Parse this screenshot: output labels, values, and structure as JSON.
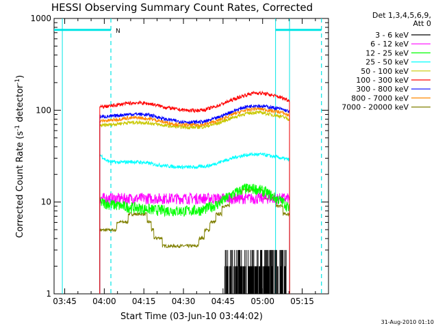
{
  "chart_data": {
    "type": "line",
    "title": "HESSI Observing Summary Count Rates, Corrected",
    "xlabel": "Start Time (03-Jun-10 03:44:02)",
    "ylabel_main": "Corrected Count Rate (s",
    "ylabel_sup1": "-1",
    "ylabel_mid": " detector",
    "ylabel_sup2": "-1",
    "ylabel_end": ")",
    "yscale": "log",
    "xlim": [
      -4.033,
      99.967
    ],
    "ylim": [
      1,
      1000
    ],
    "x_ticks": [
      {
        "label": "03:45",
        "x": 0
      },
      {
        "label": "04:00",
        "x": 15
      },
      {
        "label": "04:15",
        "x": 30
      },
      {
        "label": "04:30",
        "x": 45
      },
      {
        "label": "04:45",
        "x": 60
      },
      {
        "label": "05:00",
        "x": 75
      },
      {
        "label": "05:15",
        "x": 90
      }
    ],
    "y_ticks": [
      {
        "label": "1",
        "value": 1
      },
      {
        "label": "10",
        "value": 10
      },
      {
        "label": "100",
        "value": 100
      },
      {
        "label": "1000",
        "value": 1000
      }
    ],
    "legend_header": [
      "Det 1,3,4,5,6,9,",
      "Att 0"
    ],
    "legend_placement": "right",
    "timestamp": "31-Aug-2010 01:10",
    "night_label": "N",
    "night_bars": [
      {
        "x_start": -4.033,
        "x_end": 17.5
      },
      {
        "x_start": 79.9,
        "x_end": 97.3
      }
    ],
    "night_bar_level": 750,
    "night_bounds_dashed": [
      17.5,
      97.3
    ],
    "night_bounds_solid": [
      -0.9,
      79.9,
      85.2
    ],
    "data_x_range": [
      13.3,
      85.2
    ],
    "series": [
      {
        "name": "3 - 6 keV",
        "color": "#000000",
        "segments": [
          {
            "x_start": 60.5,
            "x_end": 84.0,
            "low": 1.0,
            "high": 3.0
          }
        ]
      },
      {
        "name": "6 - 12 keV",
        "color": "#ff00ff",
        "points": [
          [
            13.3,
            11
          ],
          [
            20,
            11
          ],
          [
            30,
            11
          ],
          [
            40,
            11
          ],
          [
            50,
            11
          ],
          [
            60,
            11
          ],
          [
            70,
            11
          ],
          [
            75,
            11
          ],
          [
            80,
            11
          ],
          [
            85,
            11
          ]
        ]
      },
      {
        "name": "12 - 25 keV",
        "color": "#00ff00",
        "points": [
          [
            13.3,
            10
          ],
          [
            17,
            9.5
          ],
          [
            22,
            9
          ],
          [
            28,
            8.6
          ],
          [
            35,
            8.2
          ],
          [
            45,
            8
          ],
          [
            52,
            8.2
          ],
          [
            58,
            9.5
          ],
          [
            63,
            12
          ],
          [
            68,
            14
          ],
          [
            72,
            14
          ],
          [
            76,
            13
          ],
          [
            80,
            11
          ],
          [
            83,
            10
          ],
          [
            85,
            8.5
          ]
        ]
      },
      {
        "name": "25 - 50 keV",
        "color": "#00ffff",
        "points": [
          [
            13.3,
            33
          ],
          [
            16,
            28
          ],
          [
            20,
            27
          ],
          [
            25,
            27.5
          ],
          [
            30,
            27
          ],
          [
            35,
            25.5
          ],
          [
            40,
            24.5
          ],
          [
            45,
            24
          ],
          [
            50,
            24
          ],
          [
            55,
            25
          ],
          [
            60,
            28
          ],
          [
            65,
            31
          ],
          [
            70,
            33
          ],
          [
            75,
            33
          ],
          [
            80,
            31
          ],
          [
            85,
            29
          ]
        ]
      },
      {
        "name": "50 - 100 keV",
        "color": "#c8c800",
        "points": [
          [
            13.3,
            68
          ],
          [
            18,
            70
          ],
          [
            23,
            73
          ],
          [
            28,
            74
          ],
          [
            33,
            72
          ],
          [
            38,
            68
          ],
          [
            43,
            66
          ],
          [
            48,
            65
          ],
          [
            53,
            66
          ],
          [
            58,
            72
          ],
          [
            63,
            82
          ],
          [
            68,
            91
          ],
          [
            72,
            95
          ],
          [
            75,
            94
          ],
          [
            78,
            90
          ],
          [
            82,
            86
          ],
          [
            85,
            80
          ]
        ]
      },
      {
        "name": "100 - 300 keV",
        "color": "#ff0000",
        "points": [
          [
            13.3,
            108
          ],
          [
            18,
            112
          ],
          [
            23,
            118
          ],
          [
            28,
            121
          ],
          [
            33,
            117
          ],
          [
            38,
            108
          ],
          [
            43,
            102
          ],
          [
            48,
            99
          ],
          [
            53,
            101
          ],
          [
            58,
            112
          ],
          [
            63,
            128
          ],
          [
            68,
            145
          ],
          [
            72,
            155
          ],
          [
            75,
            153
          ],
          [
            78,
            147
          ],
          [
            82,
            138
          ],
          [
            85,
            128
          ]
        ]
      },
      {
        "name": "300 - 800 keV",
        "color": "#0000ff",
        "points": [
          [
            13.3,
            85
          ],
          [
            18,
            86
          ],
          [
            23,
            90
          ],
          [
            28,
            91
          ],
          [
            33,
            88
          ],
          [
            38,
            80
          ],
          [
            43,
            76
          ],
          [
            48,
            74
          ],
          [
            53,
            75
          ],
          [
            58,
            83
          ],
          [
            63,
            96
          ],
          [
            68,
            108
          ],
          [
            72,
            113
          ],
          [
            75,
            111
          ],
          [
            78,
            108
          ],
          [
            82,
            103
          ],
          [
            85,
            97
          ]
        ]
      },
      {
        "name": "800 - 7000 keV",
        "color": "#ff8800",
        "points": [
          [
            13.3,
            76
          ],
          [
            18,
            78
          ],
          [
            23,
            82
          ],
          [
            28,
            83
          ],
          [
            33,
            80
          ],
          [
            38,
            74
          ],
          [
            43,
            70
          ],
          [
            48,
            69
          ],
          [
            53,
            70
          ],
          [
            58,
            77
          ],
          [
            63,
            89
          ],
          [
            68,
            99
          ],
          [
            72,
            104
          ],
          [
            75,
            103
          ],
          [
            78,
            99
          ],
          [
            82,
            95
          ],
          [
            85,
            88
          ]
        ]
      },
      {
        "name": "7000 - 20000 keV",
        "color": "#808000",
        "points": [
          [
            13.3,
            4.5
          ],
          [
            18,
            5
          ],
          [
            23,
            6.5
          ],
          [
            28,
            7.5
          ],
          [
            32,
            6.5
          ],
          [
            34,
            4.2
          ],
          [
            38,
            3.5
          ],
          [
            45,
            3.3
          ],
          [
            50,
            3.4
          ],
          [
            53,
            4.5
          ],
          [
            56,
            6
          ],
          [
            60,
            8.5
          ],
          [
            64,
            11
          ],
          [
            68,
            12.5
          ],
          [
            72,
            13
          ],
          [
            76,
            12
          ],
          [
            80,
            10
          ],
          [
            83,
            8
          ],
          [
            85,
            7
          ]
        ]
      }
    ]
  },
  "colors": {
    "night_marker": "#00e5e5"
  }
}
